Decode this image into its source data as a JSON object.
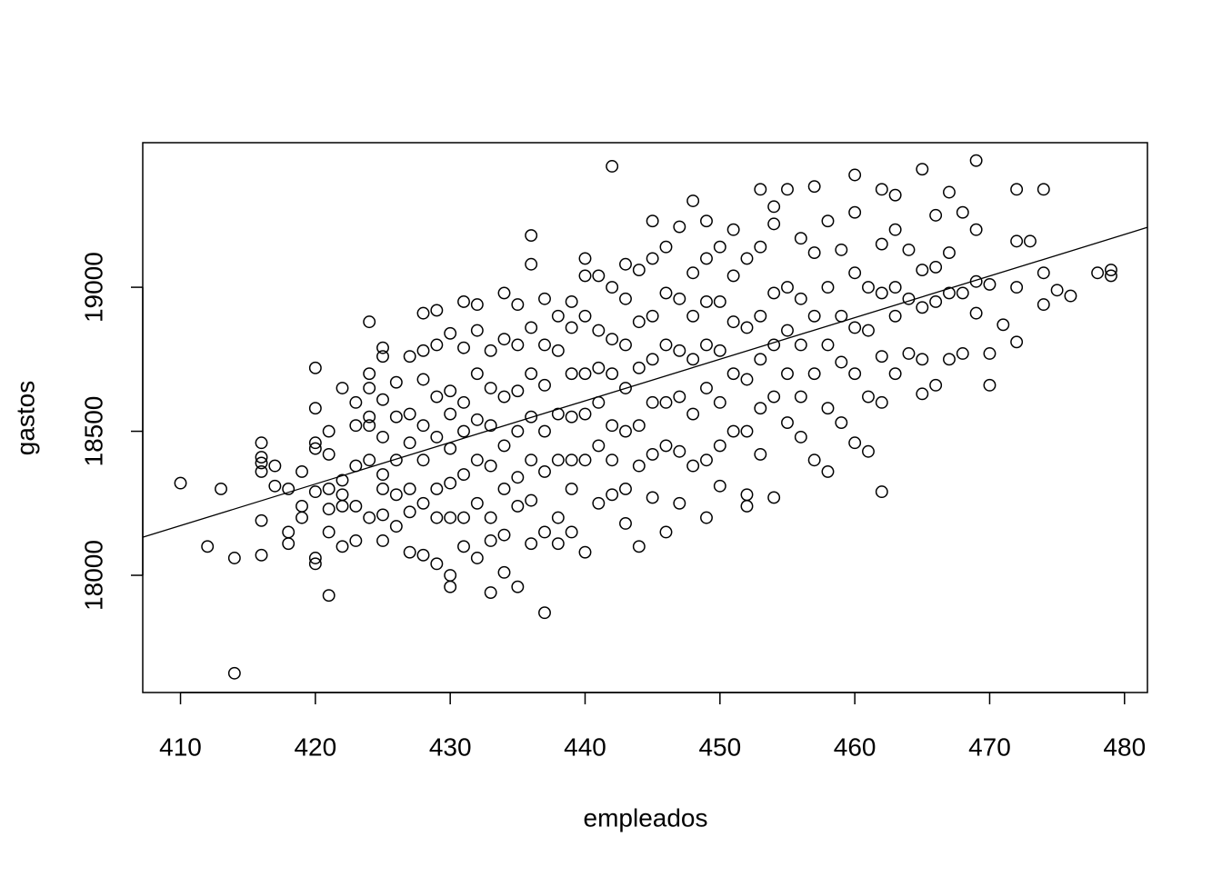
{
  "chart_data": {
    "type": "scatter",
    "xlabel": "empleados",
    "ylabel": "gastos",
    "xlim": [
      407.2,
      481.7
    ],
    "ylim": [
      17593,
      19502
    ],
    "xticks": [
      410,
      420,
      430,
      440,
      450,
      460,
      470,
      480
    ],
    "yticks": [
      18000,
      18500,
      19000
    ],
    "color": "#000000",
    "x": [
      410,
      412,
      413,
      414,
      414,
      416,
      416,
      416,
      416,
      416,
      416,
      417,
      417,
      418,
      418,
      418,
      419,
      419,
      419,
      420,
      420,
      420,
      420,
      420,
      420,
      420,
      421,
      421,
      421,
      421,
      421,
      421,
      422,
      422,
      422,
      422,
      422,
      423,
      423,
      423,
      423,
      423,
      424,
      424,
      424,
      424,
      424,
      424,
      424,
      425,
      425,
      425,
      425,
      425,
      425,
      425,
      425,
      426,
      426,
      426,
      426,
      426,
      427,
      427,
      427,
      427,
      427,
      427,
      428,
      428,
      428,
      428,
      428,
      428,
      428,
      429,
      429,
      429,
      429,
      429,
      429,
      429,
      430,
      430,
      430,
      430,
      430,
      430,
      430,
      430,
      431,
      431,
      431,
      431,
      431,
      431,
      431,
      432,
      432,
      432,
      432,
      432,
      432,
      432,
      433,
      433,
      433,
      433,
      433,
      433,
      433,
      434,
      434,
      434,
      434,
      434,
      434,
      434,
      435,
      435,
      435,
      435,
      435,
      435,
      435,
      436,
      436,
      436,
      436,
      436,
      436,
      436,
      436,
      437,
      437,
      437,
      437,
      437,
      437,
      437,
      438,
      438,
      438,
      438,
      438,
      438,
      439,
      439,
      439,
      439,
      439,
      439,
      439,
      440,
      440,
      440,
      440,
      440,
      440,
      440,
      441,
      441,
      441,
      441,
      441,
      441,
      442,
      442,
      442,
      442,
      442,
      442,
      442,
      443,
      443,
      443,
      443,
      443,
      443,
      443,
      444,
      444,
      444,
      444,
      444,
      444,
      445,
      445,
      445,
      445,
      445,
      445,
      445,
      446,
      446,
      446,
      446,
      446,
      446,
      447,
      447,
      447,
      447,
      447,
      447,
      448,
      448,
      448,
      448,
      448,
      448,
      449,
      449,
      449,
      449,
      449,
      449,
      449,
      450,
      450,
      450,
      450,
      450,
      450,
      451,
      451,
      451,
      451,
      451,
      452,
      452,
      452,
      452,
      452,
      452,
      453,
      453,
      453,
      453,
      453,
      453,
      454,
      454,
      454,
      454,
      454,
      454,
      455,
      455,
      455,
      455,
      455,
      456,
      456,
      456,
      456,
      456,
      457,
      457,
      457,
      457,
      457,
      458,
      458,
      458,
      458,
      458,
      459,
      459,
      459,
      459,
      460,
      460,
      460,
      460,
      460,
      460,
      461,
      461,
      461,
      461,
      462,
      462,
      462,
      462,
      462,
      462,
      463,
      463,
      463,
      463,
      463,
      464,
      464,
      464,
      465,
      465,
      465,
      465,
      465,
      466,
      466,
      466,
      466,
      467,
      467,
      467,
      467,
      468,
      468,
      468,
      469,
      469,
      469,
      469,
      470,
      470,
      470,
      471,
      472,
      472,
      472,
      472,
      473,
      474,
      474,
      474,
      475,
      476,
      478,
      479,
      479
    ],
    "values": [
      18320,
      18100,
      18300,
      18060,
      17660,
      18460,
      18390,
      18410,
      18360,
      18190,
      18070,
      18380,
      18310,
      18300,
      18150,
      18110,
      18360,
      18240,
      18200,
      18720,
      18580,
      18460,
      18440,
      18290,
      18060,
      18040,
      18500,
      18420,
      18300,
      18230,
      18150,
      17930,
      18650,
      18330,
      18280,
      18240,
      18100,
      18600,
      18520,
      18380,
      18240,
      18120,
      18880,
      18700,
      18650,
      18550,
      18520,
      18400,
      18200,
      18790,
      18760,
      18610,
      18480,
      18350,
      18300,
      18210,
      18120,
      18670,
      18550,
      18400,
      18280,
      18170,
      18760,
      18560,
      18460,
      18300,
      18220,
      18080,
      18910,
      18780,
      18680,
      18520,
      18400,
      18250,
      18070,
      18920,
      18800,
      18620,
      18480,
      18300,
      18200,
      18040,
      18840,
      18640,
      18560,
      18440,
      18320,
      18200,
      18000,
      17960,
      18950,
      18790,
      18600,
      18500,
      18350,
      18200,
      18100,
      18940,
      18850,
      18700,
      18540,
      18400,
      18250,
      18060,
      18780,
      18650,
      18520,
      18380,
      18200,
      18120,
      17940,
      18980,
      18820,
      18620,
      18450,
      18300,
      18140,
      18010,
      18940,
      18800,
      18640,
      18500,
      18340,
      18240,
      17960,
      19180,
      19080,
      18860,
      18700,
      18550,
      18400,
      18260,
      18110,
      18960,
      18800,
      18660,
      18500,
      18360,
      18150,
      17870,
      18900,
      18780,
      18560,
      18400,
      18200,
      18110,
      18950,
      18860,
      18700,
      18550,
      18400,
      18300,
      18150,
      19100,
      19040,
      18900,
      18700,
      18560,
      18400,
      18080,
      19040,
      18850,
      18720,
      18600,
      18450,
      18250,
      19420,
      19000,
      18820,
      18700,
      18520,
      18400,
      18280,
      19080,
      18960,
      18800,
      18650,
      18500,
      18300,
      18180,
      19060,
      18880,
      18720,
      18520,
      18380,
      18100,
      19230,
      19100,
      18900,
      18750,
      18600,
      18420,
      18270,
      19140,
      18980,
      18800,
      18600,
      18450,
      18150,
      19210,
      18960,
      18780,
      18620,
      18430,
      18250,
      19300,
      19050,
      18900,
      18750,
      18560,
      18380,
      19230,
      19100,
      18950,
      18800,
      18650,
      18400,
      18200,
      19140,
      18950,
      18780,
      18600,
      18450,
      18310,
      19200,
      19040,
      18880,
      18700,
      18500,
      19100,
      18860,
      18680,
      18500,
      18280,
      18240,
      19340,
      19140,
      18900,
      18750,
      18580,
      18420,
      19280,
      19220,
      18980,
      18800,
      18620,
      18270,
      19340,
      19000,
      18850,
      18700,
      18530,
      19170,
      18960,
      18800,
      18620,
      18480,
      19350,
      19120,
      18900,
      18700,
      18400,
      19230,
      19000,
      18800,
      18580,
      18360,
      19130,
      18900,
      18740,
      18530,
      19390,
      19260,
      19050,
      18860,
      18700,
      18460,
      19000,
      18850,
      18620,
      18430,
      19340,
      19150,
      18980,
      18760,
      18600,
      18290,
      19320,
      19200,
      19000,
      18900,
      18700,
      19130,
      18960,
      18770,
      19410,
      19060,
      18930,
      18750,
      18630,
      19250,
      19070,
      18950,
      18660,
      19330,
      19120,
      18980,
      18750,
      19260,
      18980,
      18770,
      19440,
      19200,
      19020,
      18910,
      19010,
      18770,
      18660,
      18870,
      19340,
      19160,
      19000,
      18810,
      19160,
      19340,
      19050,
      18940,
      18990,
      18970,
      19050,
      19060,
      19040
    ],
    "trend_line": {
      "x": [
        407.2,
        481.7
      ],
      "values": [
        18132,
        19208
      ]
    }
  }
}
